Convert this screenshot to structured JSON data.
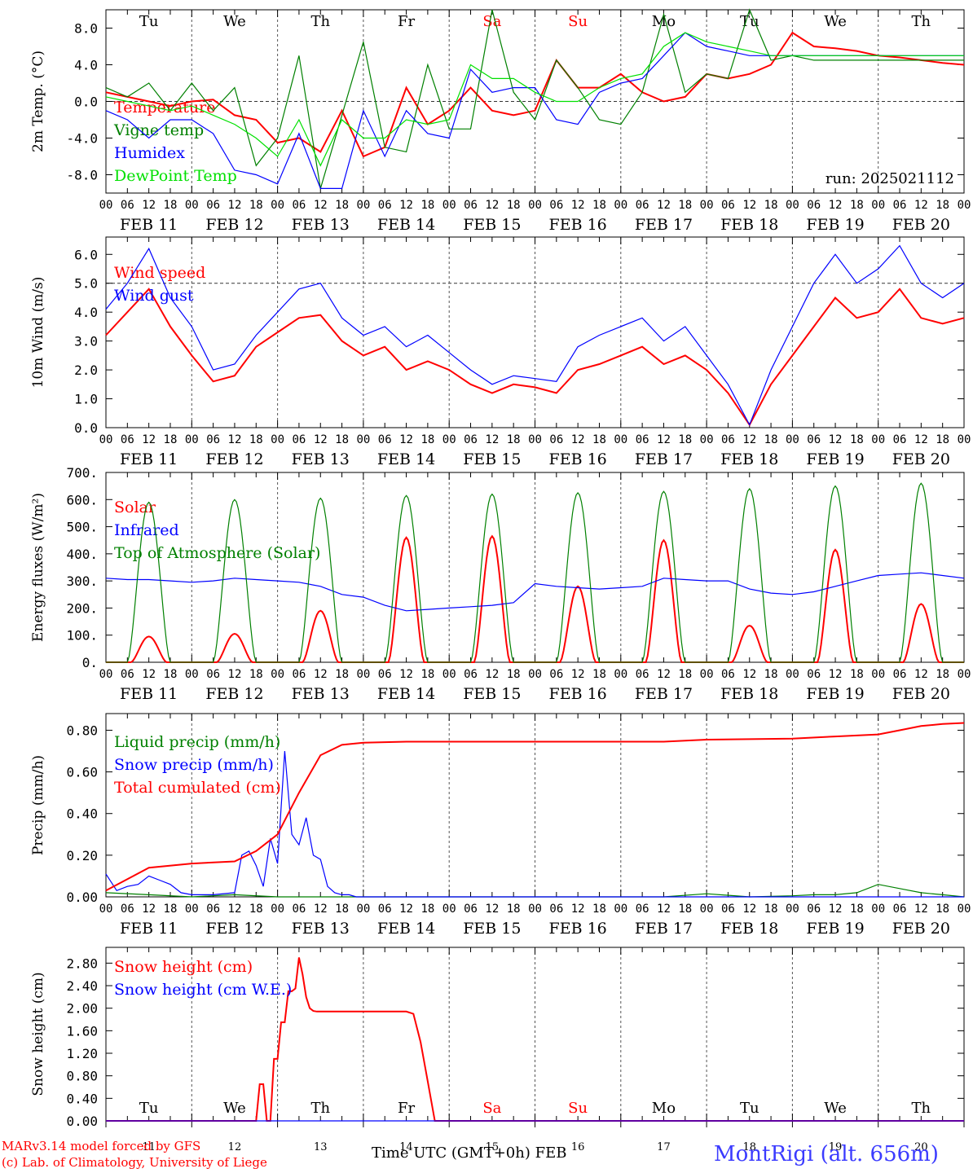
{
  "credits": {
    "line1": "MARv3.14 model forced by GFS",
    "line2": "(c) Lab. of Climatology, University of Liege",
    "station": "MontRigi (alt. 656m)",
    "xlabel": "Time UTC (GMT+0h)",
    "month": "FEB",
    "run": "run: 2025021112"
  },
  "colors": {
    "red": "#ff0000",
    "green": "#008000",
    "blue": "#0000ff",
    "lime": "#00e000",
    "weekend": "#ff0000"
  },
  "days": [
    {
      "dow": "Tu",
      "date": "FEB 11",
      "num": "11",
      "weekend": false
    },
    {
      "dow": "We",
      "date": "FEB 12",
      "num": "12",
      "weekend": false
    },
    {
      "dow": "Th",
      "date": "FEB 13",
      "num": "13",
      "weekend": false
    },
    {
      "dow": "Fr",
      "date": "FEB 14",
      "num": "14",
      "weekend": false
    },
    {
      "dow": "Sa",
      "date": "FEB 15",
      "num": "15",
      "weekend": true
    },
    {
      "dow": "Su",
      "date": "FEB 16",
      "num": "16",
      "weekend": true
    },
    {
      "dow": "Mo",
      "date": "FEB 17",
      "num": "17",
      "weekend": false
    },
    {
      "dow": "Tu",
      "date": "FEB 18",
      "num": "18",
      "weekend": false
    },
    {
      "dow": "We",
      "date": "FEB 19",
      "num": "19",
      "weekend": false
    },
    {
      "dow": "Th",
      "date": "FEB 20",
      "num": "20",
      "weekend": false
    }
  ],
  "hour_ticks": [
    "00",
    "06",
    "12",
    "18"
  ],
  "chart_data": [
    {
      "type": "line",
      "ylabel": "2m Temp. (°C)",
      "ylim": [
        -10,
        10
      ],
      "yticks": [
        -8,
        -4,
        0,
        4,
        8
      ],
      "ytick_labels": [
        "-8.0",
        "-4.0",
        "0.0",
        "4.0",
        "8.0"
      ],
      "ref_line": 0,
      "x_unit": "hours from FEB 11 00 UTC",
      "series": [
        {
          "name": "Temperature",
          "color": "red",
          "x": [
            0,
            6,
            12,
            18,
            24,
            30,
            36,
            42,
            48,
            54,
            60,
            66,
            72,
            78,
            84,
            90,
            96,
            102,
            108,
            114,
            120,
            126,
            132,
            138,
            144,
            150,
            156,
            162,
            168,
            174,
            180,
            186,
            192,
            198,
            204,
            210,
            216,
            222,
            228,
            234,
            240
          ],
          "y": [
            1.0,
            0.5,
            0.0,
            -0.5,
            0.0,
            0.2,
            -1.5,
            -2.0,
            -4.5,
            -4.0,
            -5.5,
            -1.0,
            -6.0,
            -5.0,
            1.5,
            -2.5,
            -1.0,
            1.5,
            -1.0,
            -1.5,
            -1.0,
            4.5,
            1.5,
            1.5,
            3.0,
            1.0,
            0.0,
            0.5,
            3.0,
            2.5,
            3.0,
            4.0,
            7.5,
            6.0,
            5.8,
            5.5,
            5.0,
            4.8,
            4.5,
            4.2,
            4.0
          ]
        },
        {
          "name": "Vigne temp",
          "color": "green",
          "x": [
            0,
            6,
            12,
            18,
            24,
            30,
            36,
            42,
            48,
            54,
            60,
            66,
            72,
            78,
            84,
            90,
            96,
            102,
            108,
            114,
            120,
            126,
            132,
            138,
            144,
            150,
            156,
            162,
            168,
            174,
            180,
            186,
            192,
            198,
            204,
            210,
            216,
            222,
            228,
            234,
            240
          ],
          "y": [
            1.5,
            0.5,
            2.0,
            -1.0,
            2.0,
            -1.0,
            1.5,
            -7.0,
            -4.0,
            5.0,
            -9.5,
            -1.5,
            6.5,
            -5.0,
            -5.5,
            4.0,
            -3.0,
            -3.0,
            10.0,
            1.0,
            -2.0,
            4.5,
            1.5,
            -2.0,
            -2.5,
            1.0,
            9.5,
            1.0,
            3.0,
            2.5,
            10.0,
            4.5,
            5.0,
            4.5,
            4.5,
            4.5,
            4.5,
            4.5,
            4.5,
            4.5,
            4.5
          ]
        },
        {
          "name": "Humidex",
          "color": "blue",
          "x": [
            0,
            6,
            12,
            18,
            24,
            30,
            36,
            42,
            48,
            54,
            60,
            66,
            72,
            78,
            84,
            90,
            96,
            102,
            108,
            114,
            120,
            126,
            132,
            138,
            144,
            150,
            156,
            162,
            168,
            174,
            180,
            186,
            192,
            198,
            204,
            210,
            216,
            222,
            228,
            234,
            240
          ],
          "y": [
            -1.0,
            -2.0,
            -4.0,
            -2.0,
            -2.0,
            -3.5,
            -7.5,
            -8.0,
            -9.0,
            -3.5,
            -9.5,
            -9.5,
            -1.0,
            -6.0,
            -1.0,
            -3.5,
            -4.0,
            3.5,
            1.0,
            1.5,
            1.5,
            -2.0,
            -2.5,
            1.0,
            2.0,
            2.5,
            5.0,
            7.5,
            6.0,
            5.5,
            5.0,
            5.0,
            5.0,
            5.0,
            5.0,
            5.0,
            5.0,
            5.0,
            5.0,
            5.0,
            5.0
          ]
        },
        {
          "name": "DewPoint Temp",
          "color": "lime",
          "x": [
            0,
            6,
            12,
            18,
            24,
            30,
            36,
            42,
            48,
            54,
            60,
            66,
            72,
            78,
            84,
            90,
            96,
            102,
            108,
            114,
            120,
            126,
            132,
            138,
            144,
            150,
            156,
            162,
            168,
            174,
            180,
            186,
            192,
            198,
            204,
            210,
            216,
            222,
            228,
            234,
            240
          ],
          "y": [
            0.5,
            0.0,
            -0.5,
            -1.0,
            -0.5,
            -1.5,
            -2.5,
            -4.0,
            -6.0,
            -2.0,
            -7.0,
            -2.0,
            -4.0,
            -4.0,
            -2.0,
            -2.5,
            -2.0,
            4.0,
            2.5,
            2.5,
            1.0,
            0.0,
            0.0,
            1.5,
            2.5,
            3.0,
            6.0,
            7.5,
            6.5,
            6.0,
            5.5,
            5.0,
            5.0,
            5.0,
            5.0,
            5.0,
            5.0,
            5.0,
            5.0,
            5.0,
            5.0
          ]
        }
      ]
    },
    {
      "type": "line",
      "ylabel": "10m Wind (m/s)",
      "ylim": [
        0,
        6.6
      ],
      "yticks": [
        0,
        1,
        2,
        3,
        4,
        5,
        6
      ],
      "ytick_labels": [
        "0.0",
        "1.0",
        "2.0",
        "3.0",
        "4.0",
        "5.0",
        "6.0"
      ],
      "ref_line": 5,
      "series": [
        {
          "name": "Wind speed",
          "color": "red",
          "x": [
            0,
            6,
            12,
            18,
            24,
            30,
            36,
            42,
            48,
            54,
            60,
            66,
            72,
            78,
            84,
            90,
            96,
            102,
            108,
            114,
            120,
            126,
            132,
            138,
            144,
            150,
            156,
            162,
            168,
            174,
            180,
            186,
            192,
            198,
            204,
            210,
            216,
            222,
            228,
            234,
            240
          ],
          "y": [
            3.2,
            4.0,
            4.8,
            3.5,
            2.5,
            1.6,
            1.8,
            2.8,
            3.3,
            3.8,
            3.9,
            3.0,
            2.5,
            2.8,
            2.0,
            2.3,
            2.0,
            1.5,
            1.2,
            1.5,
            1.4,
            1.2,
            2.0,
            2.2,
            2.5,
            2.8,
            2.2,
            2.5,
            2.0,
            1.2,
            0.1,
            1.5,
            2.5,
            3.5,
            4.5,
            3.8,
            4.0,
            4.8,
            3.8,
            3.6,
            3.8
          ]
        },
        {
          "name": "Wind gust",
          "color": "blue",
          "x": [
            0,
            6,
            12,
            18,
            24,
            30,
            36,
            42,
            48,
            54,
            60,
            66,
            72,
            78,
            84,
            90,
            96,
            102,
            108,
            114,
            120,
            126,
            132,
            138,
            144,
            150,
            156,
            162,
            168,
            174,
            180,
            186,
            192,
            198,
            204,
            210,
            216,
            222,
            228,
            234,
            240
          ],
          "y": [
            4.1,
            5.0,
            6.2,
            4.5,
            3.5,
            2.0,
            2.2,
            3.2,
            4.0,
            4.8,
            5.0,
            3.8,
            3.2,
            3.5,
            2.8,
            3.2,
            2.6,
            2.0,
            1.5,
            1.8,
            1.7,
            1.6,
            2.8,
            3.2,
            3.5,
            3.8,
            3.0,
            3.5,
            2.5,
            1.5,
            0.1,
            2.0,
            3.5,
            5.0,
            6.0,
            5.0,
            5.5,
            6.3,
            5.0,
            4.5,
            5.0
          ]
        }
      ]
    },
    {
      "type": "line",
      "ylabel": "Energy fluxes (W/m²)",
      "ylim": [
        0,
        700
      ],
      "yticks": [
        0,
        100,
        200,
        300,
        400,
        500,
        600,
        700
      ],
      "ytick_labels": [
        "0.",
        "100.",
        "200.",
        "300.",
        "400.",
        "500.",
        "600.",
        "700."
      ],
      "series": [
        {
          "name": "Solar",
          "color": "red",
          "daily_peaks": [
            95,
            105,
            190,
            460,
            465,
            280,
            450,
            135,
            415,
            215
          ]
        },
        {
          "name": "Infrared",
          "color": "blue",
          "x": [
            0,
            6,
            12,
            18,
            24,
            30,
            36,
            42,
            48,
            54,
            60,
            66,
            72,
            78,
            84,
            90,
            96,
            102,
            108,
            114,
            120,
            126,
            132,
            138,
            144,
            150,
            156,
            162,
            168,
            174,
            180,
            186,
            192,
            198,
            204,
            210,
            216,
            222,
            228,
            234,
            240
          ],
          "y": [
            310,
            305,
            305,
            300,
            295,
            300,
            310,
            305,
            300,
            295,
            280,
            250,
            240,
            210,
            190,
            195,
            200,
            205,
            210,
            220,
            290,
            280,
            275,
            270,
            275,
            280,
            310,
            305,
            300,
            300,
            270,
            255,
            250,
            260,
            280,
            300,
            320,
            325,
            330,
            320,
            310
          ]
        },
        {
          "name": "Top of Atmosphere (Solar)",
          "color": "green",
          "daily_peaks": [
            590,
            600,
            605,
            615,
            620,
            625,
            630,
            640,
            650,
            660
          ]
        }
      ]
    },
    {
      "type": "line",
      "ylabel": "Precip (mm/h)",
      "ylim": [
        0,
        0.88
      ],
      "yticks": [
        0,
        0.2,
        0.4,
        0.6,
        0.8
      ],
      "ytick_labels": [
        "0.00",
        "0.20",
        "0.40",
        "0.60",
        "0.80"
      ],
      "series": [
        {
          "name": "Liquid precip (mm/h)",
          "color": "green",
          "x": [
            0,
            12,
            24,
            36,
            48,
            60,
            72,
            84,
            96,
            108,
            120,
            132,
            144,
            156,
            168,
            180,
            192,
            198,
            204,
            210,
            216,
            222,
            228,
            234,
            240
          ],
          "y": [
            0.02,
            0.01,
            0.0,
            0.01,
            0.0,
            0.0,
            0.0,
            0.0,
            0.0,
            0.0,
            0.0,
            0.0,
            0.0,
            0.0,
            0.015,
            0.0,
            0.005,
            0.01,
            0.01,
            0.02,
            0.06,
            0.04,
            0.02,
            0.01,
            0.0
          ]
        },
        {
          "name": "Snow precip (mm/h)",
          "color": "blue",
          "x": [
            0,
            3,
            6,
            9,
            12,
            15,
            18,
            21,
            24,
            30,
            36,
            38,
            40,
            42,
            44,
            46,
            48,
            50,
            52,
            54,
            56,
            58,
            60,
            62,
            64,
            66,
            68,
            70,
            72,
            80,
            96,
            120,
            144,
            168,
            192,
            216,
            240
          ],
          "y": [
            0.11,
            0.03,
            0.05,
            0.06,
            0.1,
            0.08,
            0.06,
            0.02,
            0.01,
            0.01,
            0.02,
            0.2,
            0.22,
            0.15,
            0.05,
            0.28,
            0.16,
            0.7,
            0.3,
            0.25,
            0.38,
            0.2,
            0.18,
            0.05,
            0.02,
            0.01,
            0.01,
            0.0,
            0.0,
            0.0,
            0.0,
            0.0,
            0.0,
            0.0,
            0.0,
            0.0,
            0.0
          ]
        },
        {
          "name": "Total cumulated (cm)",
          "color": "red",
          "x": [
            0,
            12,
            24,
            36,
            42,
            48,
            54,
            60,
            66,
            72,
            84,
            96,
            120,
            144,
            156,
            168,
            192,
            204,
            216,
            222,
            228,
            234,
            240
          ],
          "y": [
            0.03,
            0.14,
            0.16,
            0.17,
            0.22,
            0.3,
            0.5,
            0.68,
            0.73,
            0.74,
            0.745,
            0.745,
            0.745,
            0.745,
            0.745,
            0.755,
            0.76,
            0.77,
            0.78,
            0.8,
            0.82,
            0.83,
            0.835
          ]
        }
      ]
    },
    {
      "type": "line",
      "ylabel": "Snow height (cm)",
      "ylim": [
        0,
        3.08
      ],
      "yticks": [
        0,
        0.4,
        0.8,
        1.2,
        1.6,
        2.0,
        2.4,
        2.8
      ],
      "ytick_labels": [
        "0.00",
        "0.40",
        "0.80",
        "1.20",
        "1.60",
        "2.00",
        "2.40",
        "2.80"
      ],
      "series": [
        {
          "name": "Snow height (cm)",
          "color": "red",
          "x": [
            0,
            12,
            24,
            36,
            42,
            43,
            44,
            45,
            46,
            47,
            48,
            49,
            50,
            51,
            52,
            53,
            54,
            55,
            56,
            57,
            58,
            59,
            60,
            62,
            64,
            66,
            72,
            78,
            84,
            86,
            88,
            90,
            92,
            94,
            120,
            144,
            168,
            192,
            216,
            240
          ],
          "y": [
            0,
            0,
            0,
            0,
            0,
            0.65,
            0.65,
            0,
            0,
            1.1,
            1.1,
            1.75,
            1.75,
            2.3,
            2.3,
            2.35,
            2.9,
            2.6,
            2.2,
            2.0,
            1.95,
            1.94,
            1.94,
            1.94,
            1.94,
            1.94,
            1.94,
            1.94,
            1.94,
            1.9,
            1.4,
            0.7,
            0.0,
            0.0,
            0,
            0,
            0,
            0,
            0,
            0
          ]
        },
        {
          "name": "Snow height (cm W.E.)",
          "color": "blue",
          "x": [
            0,
            240
          ],
          "y": [
            0,
            0
          ]
        }
      ]
    }
  ]
}
